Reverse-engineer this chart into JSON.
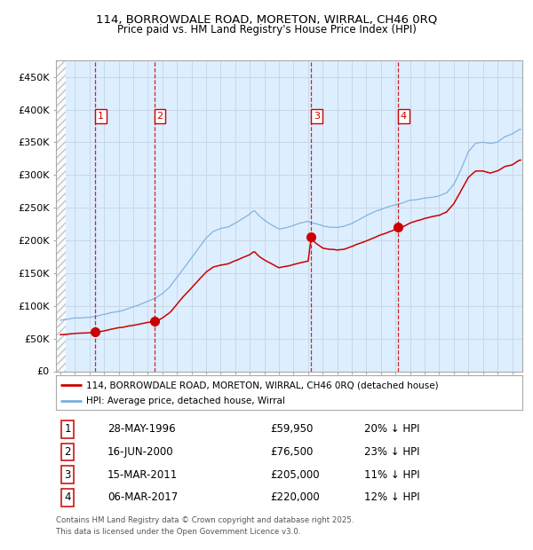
{
  "title1": "114, BORROWDALE ROAD, MORETON, WIRRAL, CH46 0RQ",
  "title2": "Price paid vs. HM Land Registry's House Price Index (HPI)",
  "ylim": [
    0,
    475000
  ],
  "yticks": [
    0,
    50000,
    100000,
    150000,
    200000,
    250000,
    300000,
    350000,
    400000,
    450000
  ],
  "ytick_labels": [
    "£0",
    "£50K",
    "£100K",
    "£150K",
    "£200K",
    "£250K",
    "£300K",
    "£350K",
    "£400K",
    "£450K"
  ],
  "xlim_start": 1993.7,
  "xlim_end": 2025.7,
  "sale_dates": [
    1996.41,
    2000.46,
    2011.21,
    2017.18
  ],
  "sale_prices": [
    59950,
    76500,
    205000,
    220000
  ],
  "sale_labels": [
    "1",
    "2",
    "3",
    "4"
  ],
  "sale_info": [
    {
      "label": "1",
      "date": "28-MAY-1996",
      "price": "£59,950",
      "hpi": "20% ↓ HPI"
    },
    {
      "label": "2",
      "date": "16-JUN-2000",
      "price": "£76,500",
      "hpi": "23% ↓ HPI"
    },
    {
      "label": "3",
      "date": "15-MAR-2011",
      "price": "£205,000",
      "hpi": "11% ↓ HPI"
    },
    {
      "label": "4",
      "date": "06-MAR-2017",
      "price": "£220,000",
      "hpi": "12% ↓ HPI"
    }
  ],
  "legend_line1": "114, BORROWDALE ROAD, MORETON, WIRRAL, CH46 0RQ (detached house)",
  "legend_line2": "HPI: Average price, detached house, Wirral",
  "footer1": "Contains HM Land Registry data © Crown copyright and database right 2025.",
  "footer2": "This data is licensed under the Open Government Licence v3.0.",
  "hpi_color": "#7aadda",
  "sale_color": "#cc0000",
  "grid_color": "#c8d8e8",
  "background_color": "#ddeeff",
  "hpi_pts": [
    [
      1994.0,
      78000
    ],
    [
      1994.5,
      79000
    ],
    [
      1995.0,
      81000
    ],
    [
      1995.5,
      82000
    ],
    [
      1996.0,
      83000
    ],
    [
      1996.5,
      85000
    ],
    [
      1997.0,
      88000
    ],
    [
      1997.5,
      91000
    ],
    [
      1998.0,
      93000
    ],
    [
      1998.5,
      96000
    ],
    [
      1999.0,
      100000
    ],
    [
      1999.5,
      104000
    ],
    [
      2000.0,
      108000
    ],
    [
      2000.5,
      113000
    ],
    [
      2001.0,
      120000
    ],
    [
      2001.5,
      130000
    ],
    [
      2002.0,
      145000
    ],
    [
      2002.5,
      160000
    ],
    [
      2003.0,
      175000
    ],
    [
      2003.5,
      190000
    ],
    [
      2004.0,
      205000
    ],
    [
      2004.5,
      215000
    ],
    [
      2005.0,
      220000
    ],
    [
      2005.5,
      222000
    ],
    [
      2006.0,
      228000
    ],
    [
      2006.5,
      235000
    ],
    [
      2007.0,
      242000
    ],
    [
      2007.3,
      248000
    ],
    [
      2007.6,
      240000
    ],
    [
      2008.0,
      232000
    ],
    [
      2008.5,
      225000
    ],
    [
      2009.0,
      218000
    ],
    [
      2009.5,
      220000
    ],
    [
      2010.0,
      224000
    ],
    [
      2010.5,
      228000
    ],
    [
      2011.0,
      230000
    ],
    [
      2011.5,
      226000
    ],
    [
      2012.0,
      222000
    ],
    [
      2012.5,
      220000
    ],
    [
      2013.0,
      220000
    ],
    [
      2013.5,
      222000
    ],
    [
      2014.0,
      226000
    ],
    [
      2014.5,
      232000
    ],
    [
      2015.0,
      238000
    ],
    [
      2015.5,
      243000
    ],
    [
      2016.0,
      248000
    ],
    [
      2016.5,
      252000
    ],
    [
      2017.0,
      255000
    ],
    [
      2017.5,
      258000
    ],
    [
      2018.0,
      262000
    ],
    [
      2018.5,
      263000
    ],
    [
      2019.0,
      265000
    ],
    [
      2019.5,
      266000
    ],
    [
      2020.0,
      268000
    ],
    [
      2020.5,
      272000
    ],
    [
      2021.0,
      285000
    ],
    [
      2021.5,
      308000
    ],
    [
      2022.0,
      335000
    ],
    [
      2022.5,
      348000
    ],
    [
      2023.0,
      350000
    ],
    [
      2023.5,
      348000
    ],
    [
      2024.0,
      350000
    ],
    [
      2024.5,
      358000
    ],
    [
      2025.0,
      362000
    ],
    [
      2025.5,
      368000
    ]
  ],
  "red_pts": [
    [
      1994.0,
      56000
    ],
    [
      1994.5,
      57000
    ],
    [
      1995.0,
      58000
    ],
    [
      1995.5,
      58500
    ],
    [
      1996.0,
      59000
    ],
    [
      1996.41,
      59950
    ],
    [
      1996.5,
      60200
    ],
    [
      1997.0,
      62000
    ],
    [
      1997.5,
      64000
    ],
    [
      1998.0,
      66000
    ],
    [
      1998.5,
      68000
    ],
    [
      1999.0,
      70000
    ],
    [
      1999.5,
      72500
    ],
    [
      2000.0,
      75000
    ],
    [
      2000.46,
      76500
    ],
    [
      2000.7,
      78000
    ],
    [
      2001.0,
      82000
    ],
    [
      2001.5,
      90000
    ],
    [
      2002.0,
      103000
    ],
    [
      2002.5,
      116000
    ],
    [
      2003.0,
      128000
    ],
    [
      2003.5,
      140000
    ],
    [
      2004.0,
      152000
    ],
    [
      2004.5,
      160000
    ],
    [
      2005.0,
      163000
    ],
    [
      2005.5,
      165000
    ],
    [
      2006.0,
      170000
    ],
    [
      2006.5,
      175000
    ],
    [
      2007.0,
      180000
    ],
    [
      2007.3,
      185000
    ],
    [
      2007.6,
      178000
    ],
    [
      2008.0,
      172000
    ],
    [
      2008.5,
      166000
    ],
    [
      2009.0,
      160000
    ],
    [
      2009.5,
      162000
    ],
    [
      2010.0,
      165000
    ],
    [
      2010.5,
      168000
    ],
    [
      2011.0,
      170000
    ],
    [
      2011.21,
      205000
    ],
    [
      2011.5,
      198000
    ],
    [
      2012.0,
      190000
    ],
    [
      2012.5,
      188000
    ],
    [
      2013.0,
      187000
    ],
    [
      2013.5,
      188000
    ],
    [
      2014.0,
      192000
    ],
    [
      2014.5,
      196000
    ],
    [
      2015.0,
      200000
    ],
    [
      2015.5,
      205000
    ],
    [
      2016.0,
      210000
    ],
    [
      2016.5,
      214000
    ],
    [
      2017.0,
      218000
    ],
    [
      2017.18,
      220000
    ],
    [
      2017.5,
      222000
    ],
    [
      2018.0,
      228000
    ],
    [
      2018.5,
      232000
    ],
    [
      2019.0,
      235000
    ],
    [
      2019.5,
      238000
    ],
    [
      2020.0,
      240000
    ],
    [
      2020.5,
      245000
    ],
    [
      2021.0,
      258000
    ],
    [
      2021.5,
      278000
    ],
    [
      2022.0,
      298000
    ],
    [
      2022.5,
      308000
    ],
    [
      2023.0,
      308000
    ],
    [
      2023.5,
      305000
    ],
    [
      2024.0,
      308000
    ],
    [
      2024.5,
      315000
    ],
    [
      2025.0,
      318000
    ],
    [
      2025.5,
      325000
    ]
  ]
}
